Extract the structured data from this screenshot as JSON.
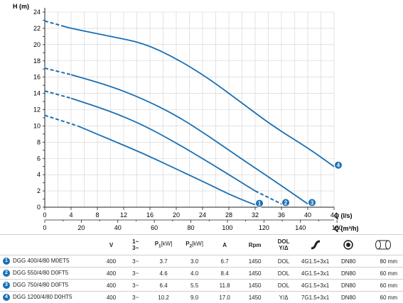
{
  "chart_data": {
    "type": "line",
    "ylabel": "H (m)",
    "xlabel_top": "Q (l/s)",
    "xlabel_bottom": "Q (m³/h)",
    "xlim": [
      0,
      44
    ],
    "ylim": [
      0,
      24
    ],
    "x_ticks_ls": [
      "0",
      "4",
      "8",
      "12",
      "16",
      "20",
      "24",
      "28",
      "32",
      "36",
      "40",
      "44"
    ],
    "x_ticks_m3h": [
      "0",
      "20",
      "40",
      "60",
      "80",
      "100",
      "120",
      "140",
      "160"
    ],
    "y_ticks": [
      "0",
      "2",
      "4",
      "6",
      "8",
      "10",
      "12",
      "14",
      "16",
      "18",
      "20",
      "22",
      "24"
    ],
    "grid": true,
    "series": [
      {
        "label": "1",
        "dashed_until": 5,
        "end": [
          32,
          0.3
        ],
        "points": [
          [
            0,
            11.3
          ],
          [
            5,
            10.0
          ],
          [
            10,
            8.3
          ],
          [
            15,
            6.6
          ],
          [
            20,
            4.7
          ],
          [
            25,
            2.8
          ],
          [
            28,
            1.6
          ],
          [
            31,
            0.6
          ],
          [
            32,
            0.3
          ]
        ]
      },
      {
        "label": "2",
        "dashed_until": 4,
        "end": [
          36,
          0.4
        ],
        "dashed_from": 32,
        "points": [
          [
            0,
            14.3
          ],
          [
            4,
            13.4
          ],
          [
            10,
            11.8
          ],
          [
            15,
            10.1
          ],
          [
            20,
            7.9
          ],
          [
            25,
            5.5
          ],
          [
            29,
            3.5
          ],
          [
            32,
            2.0
          ],
          [
            36,
            0.4
          ]
        ]
      },
      {
        "label": "3",
        "dashed_until": 4,
        "end": [
          40,
          0.4
        ],
        "points": [
          [
            0,
            17.1
          ],
          [
            4,
            16.3
          ],
          [
            10,
            14.9
          ],
          [
            15,
            13.3
          ],
          [
            20,
            11.3
          ],
          [
            25,
            8.7
          ],
          [
            30,
            5.9
          ],
          [
            35,
            3.2
          ],
          [
            40,
            0.4
          ]
        ]
      },
      {
        "label": "4",
        "dashed_until": 3,
        "end": [
          44,
          5.0
        ],
        "points": [
          [
            0,
            22.9
          ],
          [
            4,
            22.0
          ],
          [
            10,
            21.0
          ],
          [
            15,
            20.2
          ],
          [
            20,
            18.3
          ],
          [
            25,
            15.8
          ],
          [
            30,
            12.8
          ],
          [
            35,
            9.8
          ],
          [
            40,
            7.3
          ],
          [
            44,
            5.0
          ]
        ]
      }
    ]
  },
  "table": {
    "headers": {
      "v": "V",
      "phase_top": "1~",
      "phase_bot": "3~",
      "a": "A",
      "rpm": "Rpm",
      "dol_top": "DOL",
      "dol_bot": "Y/Δ",
      "p1": "P",
      "p1_sub": "1",
      "p1_unit": "[kW]",
      "p2": "P",
      "p2_sub": "2",
      "p2_unit": "[kW]"
    },
    "rows": [
      {
        "num": "1",
        "model": "DGG 400/4/80 M0ET5",
        "v": "400",
        "phase": "3~",
        "p1": "3.7",
        "p2": "3.0",
        "a": "6.7",
        "rpm": "1450",
        "dol": "DOL",
        "cable": "4G1.5+3x1",
        "dn": "DN80",
        "size": "80 mm"
      },
      {
        "num": "2",
        "model": "DGG 550/4/80 D0FT5",
        "v": "400",
        "phase": "3~",
        "p1": "4.6",
        "p2": "4.0",
        "a": "8.4",
        "rpm": "1450",
        "dol": "DOL",
        "cable": "4G1.5+3x1",
        "dn": "DN80",
        "size": "60 mm"
      },
      {
        "num": "3",
        "model": "DGG 750/4/80 D0FT5",
        "v": "400",
        "phase": "3~",
        "p1": "6.4",
        "p2": "5.5",
        "a": "11.8",
        "rpm": "1450",
        "dol": "DOL",
        "cable": "4G1.5+3x1",
        "dn": "DN80",
        "size": "60 mm"
      },
      {
        "num": "4",
        "model": "DGG 1200/4/80 D0HT5",
        "v": "400",
        "phase": "3~",
        "p1": "10.2",
        "p2": "9.0",
        "a": "17.0",
        "rpm": "1450",
        "dol": "Y/Δ",
        "cable": "7G1.5+3x1",
        "dn": "DN80",
        "size": "60 mm"
      }
    ]
  }
}
